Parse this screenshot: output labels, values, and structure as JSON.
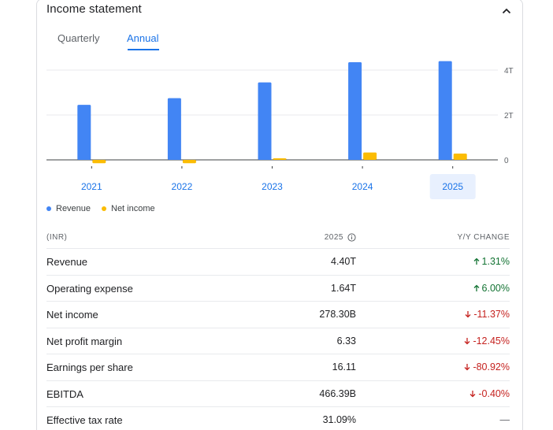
{
  "header": {
    "title": "Income statement"
  },
  "tabs": [
    {
      "label": "Quarterly",
      "active": false
    },
    {
      "label": "Annual",
      "active": true
    }
  ],
  "colors": {
    "revenue": "#4285f4",
    "net_income": "#fbbc04",
    "accent": "#1a73e8",
    "up": "#137333",
    "down": "#c5221f"
  },
  "chart_data": {
    "type": "bar",
    "categories": [
      "2021",
      "2022",
      "2023",
      "2024",
      "2025"
    ],
    "selected_category": "2025",
    "series": [
      {
        "name": "Revenue",
        "values": [
          2.45,
          2.75,
          3.45,
          4.35,
          4.4
        ]
      },
      {
        "name": "Net income",
        "values": [
          -0.15,
          -0.15,
          0.05,
          0.33,
          0.28
        ]
      }
    ],
    "y_ticks": [
      "4T",
      "2T",
      "0"
    ],
    "y_tick_values": [
      4,
      2,
      0
    ],
    "ylim": [
      -0.3,
      4.4
    ],
    "grid": true,
    "legend_position": "bottom-left"
  },
  "legend": [
    {
      "label": "Revenue",
      "color": "#4285f4"
    },
    {
      "label": "Net income",
      "color": "#fbbc04"
    }
  ],
  "table": {
    "col_label": "(INR)",
    "col_year": "2025",
    "col_change": "Y/Y CHANGE",
    "rows": [
      {
        "label": "Revenue",
        "value": "4.40T",
        "change": "1.31%",
        "dir": "up"
      },
      {
        "label": "Operating expense",
        "value": "1.64T",
        "change": "6.00%",
        "dir": "up"
      },
      {
        "label": "Net income",
        "value": "278.30B",
        "change": "-11.37%",
        "dir": "down"
      },
      {
        "label": "Net profit margin",
        "value": "6.33",
        "change": "-12.45%",
        "dir": "down"
      },
      {
        "label": "Earnings per share",
        "value": "16.11",
        "change": "-80.92%",
        "dir": "down"
      },
      {
        "label": "EBITDA",
        "value": "466.39B",
        "change": "-0.40%",
        "dir": "down"
      },
      {
        "label": "Effective tax rate",
        "value": "31.09%",
        "change": "—",
        "dir": "neutral"
      }
    ]
  }
}
